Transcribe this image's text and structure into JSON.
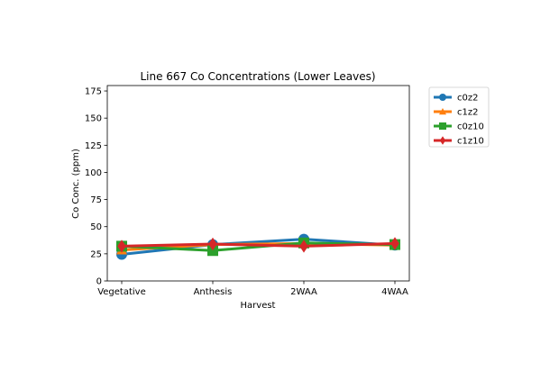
{
  "chart_data": {
    "type": "line",
    "title": "Line 667 Co Concentrations (Lower Leaves)",
    "xlabel": "Harvest",
    "ylabel": "Co Conc. (ppm)",
    "categories": [
      "Vegetative",
      "Anthesis",
      "2WAA",
      "4WAA"
    ],
    "ylim": [
      0,
      180
    ],
    "yticks": [
      0,
      25,
      50,
      75,
      100,
      125,
      150,
      175
    ],
    "grid": false,
    "legend_position": "outside-top-right",
    "series": [
      {
        "name": "c0z2",
        "color": "#1f77b4",
        "marker": "circle",
        "values": [
          24.5,
          33.5,
          38.5,
          33.0
        ]
      },
      {
        "name": "c1z2",
        "color": "#ff7f0e",
        "marker": "triangle",
        "values": [
          28.5,
          33.5,
          34.5,
          33.0
        ]
      },
      {
        "name": "c0z10",
        "color": "#2ca02c",
        "marker": "square",
        "values": [
          32.0,
          28.0,
          35.0,
          33.5
        ]
      },
      {
        "name": "c1z10",
        "color": "#d62728",
        "marker": "diamond",
        "values": [
          32.0,
          34.0,
          32.0,
          34.5
        ]
      }
    ]
  }
}
